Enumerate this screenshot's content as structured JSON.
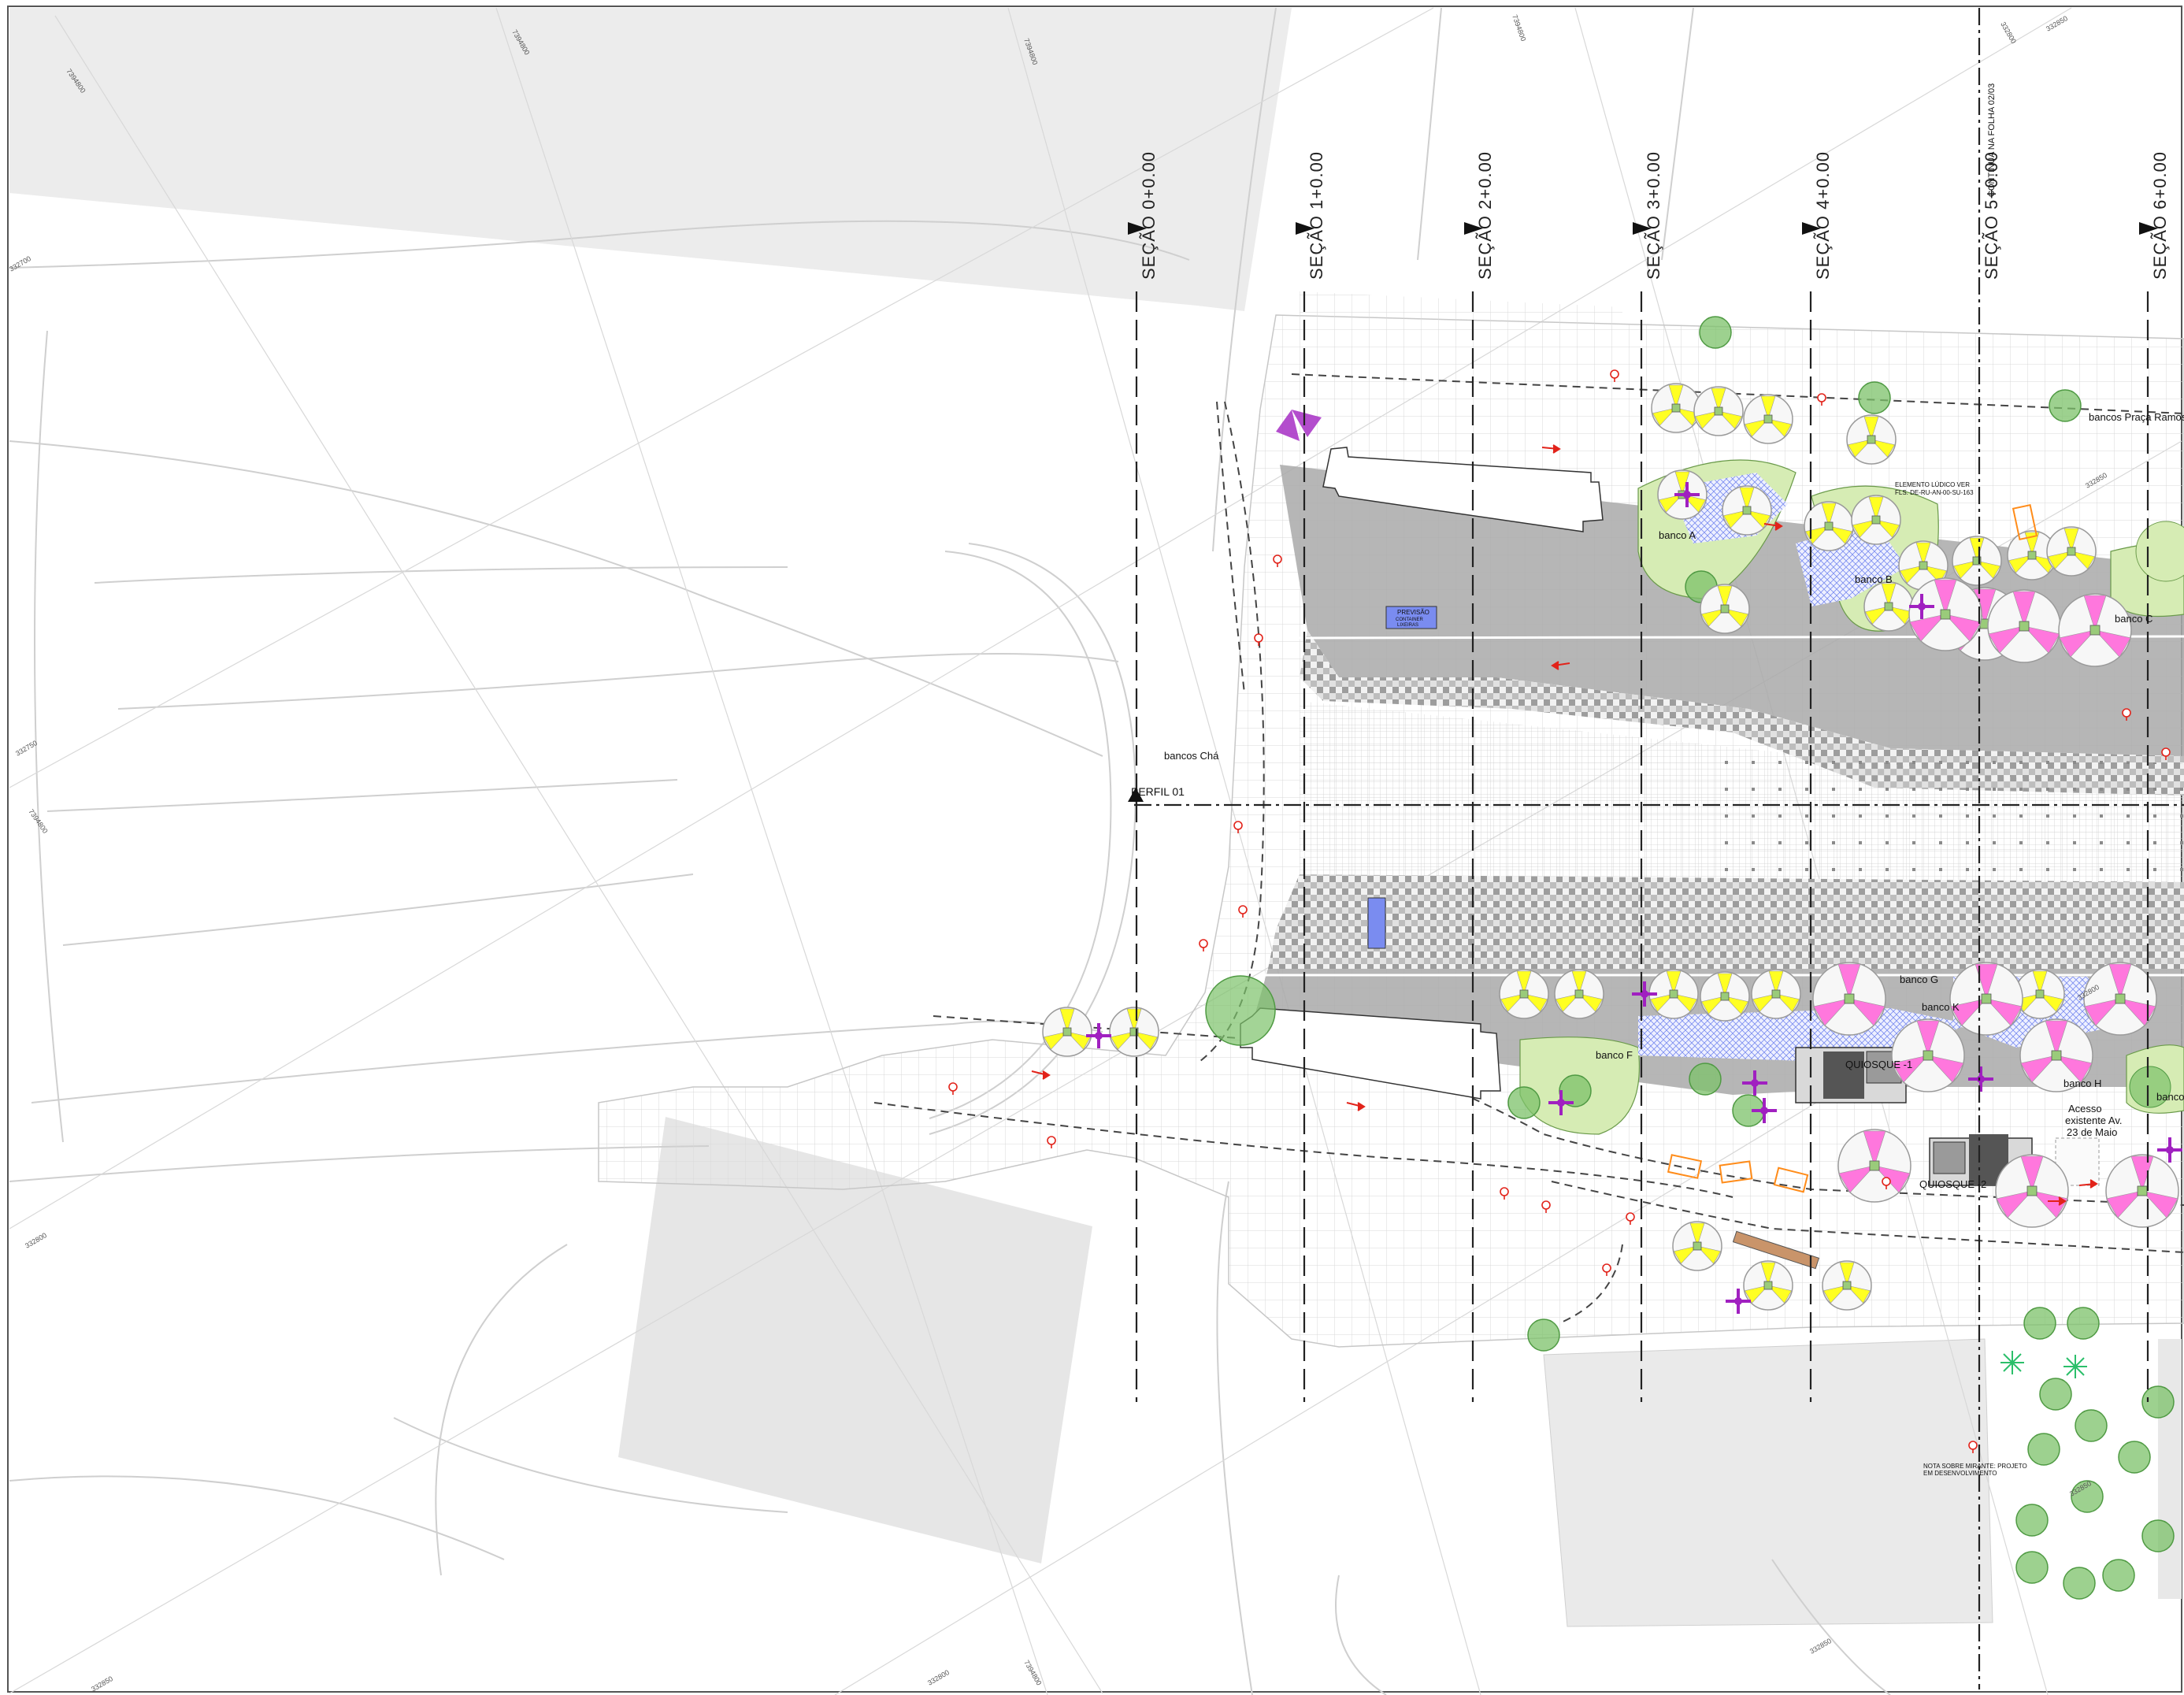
{
  "sections": [
    {
      "id": "s0",
      "label": "SEÇÃO 0+0.00"
    },
    {
      "id": "s1",
      "label": "SEÇÃO 1+0.00"
    },
    {
      "id": "s2",
      "label": "SEÇÃO 2+0.00"
    },
    {
      "id": "s3",
      "label": "SEÇÃO 3+0.00"
    },
    {
      "id": "s4",
      "label": "SEÇÃO 4+0.00"
    },
    {
      "id": "s5",
      "label": "SEÇÃO 5+0.00"
    },
    {
      "id": "s6",
      "label": "SEÇÃO 6+0.00"
    }
  ],
  "continuation_note": "CONTINUA NA FOLHA 02/03",
  "profile_label": "PERFIL 01",
  "labels": {
    "bancos_cha": "bancos Chá",
    "bancos_praca_ramos": "bancos Praça Ramos",
    "banco_a": "banco A",
    "banco_b": "banco B",
    "banco_c": "banco C",
    "banco_f": "banco F",
    "banco_g": "banco G",
    "banco_h": "banco H",
    "banco_k": "banco K",
    "banco_cut": "banco",
    "quiosque_1": "QUIOSQUE -1",
    "quiosque_2": "QUIOSQUE -2",
    "acesso_1": "Acesso",
    "acesso_2": "existente Av.",
    "acesso_3": "23 de Maio",
    "previsao_1": "PREVISÃO",
    "previsao_2": "CONTAINER",
    "previsao_3": "LIXEIRAS",
    "elemento_1": "ELEMENTO LÚDICO VER",
    "elemento_2": "FLS. DE-RU-AN-00-SU-163",
    "nota_1": "NOTA SOBRE MIRANTE: PROJETO",
    "nota_2": "EM DESENVOLVIMENTO"
  },
  "coords": [
    "7394800",
    "7394800",
    "7394800",
    "7394800",
    "7394800",
    "332700",
    "332750",
    "332800",
    "332850",
    "332850",
    "332800",
    "332850",
    "332850",
    "332800",
    "7394800",
    "332850",
    "332800"
  ],
  "colors": {
    "paving_gray": "#a9a9a9",
    "garden_green": "#d6ecb4",
    "tree_green": "#7cc26a",
    "yellow_umbrella": "#ffff22",
    "pink_umbrella": "#ff77dd",
    "purple_furniture": "#a020c0",
    "hatch_blue": "#7a8cf0",
    "kiosk": "#555555",
    "orange_furniture": "#ff8c1a",
    "marker_red": "#e2231a",
    "building_gray": "#ececec"
  },
  "icons": {
    "umbrella_yellow": "umbrella-yellow-icon",
    "umbrella_pink": "umbrella-pink-icon",
    "play_element": "play-element-icon",
    "tree": "tree-icon",
    "palm": "palm-icon",
    "light_pole": "light-pole-icon",
    "flow_arrow": "flow-arrow-icon"
  }
}
